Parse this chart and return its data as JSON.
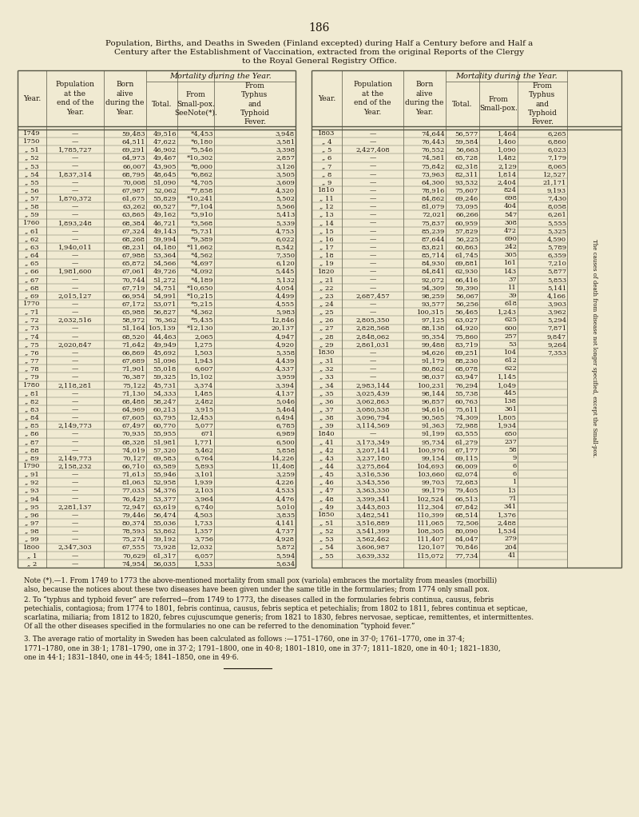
{
  "page_number": "186",
  "title_line1": "Population, Births, and Deaths in Sweden (Finland excepted) during Half a Century before and Half a",
  "title_line2": "Century after the Establishment of Vaccination, extracted from the original Reports of the Clergy",
  "title_line3": "to the Royal General Registry Office.",
  "bg_color": "#f0ead2",
  "text_color": "#1a1208",
  "data_left": [
    [
      "1749",
      "—",
      "59,483",
      "49,516",
      "*4,453",
      "3,948"
    ],
    [
      "1750",
      "—",
      "64,511",
      "47,622",
      "*6,180",
      "3,581"
    ],
    [
      "„ 51",
      "1,785,727",
      "69,291",
      "46,902",
      "*5,546",
      "3,398"
    ],
    [
      "„ 52",
      "—",
      "64,973",
      "49,467",
      "*10,302",
      "2,857"
    ],
    [
      "„ 53",
      "—",
      "66,007",
      "43,905",
      "*8,000",
      "3,126"
    ],
    [
      "„ 54",
      "1,837,314",
      "68,795",
      "48,645",
      "*6,862",
      "3,505"
    ],
    [
      "„ 55",
      "—",
      "70,008",
      "51,090",
      "*4,705",
      "3,609"
    ],
    [
      "„ 56",
      "—",
      "67,987",
      "52,062",
      "*7,858",
      "4,320"
    ],
    [
      "„ 57",
      "1,870,372",
      "61,675",
      "55,829",
      "*10,241",
      "5,502"
    ],
    [
      "„ 58",
      "—",
      "63,262",
      "60,527",
      "*7,104",
      "5,566"
    ],
    [
      "„ 59",
      "—",
      "63,865",
      "49,162",
      "*3,910",
      "5,413"
    ],
    [
      "1760",
      "1,893,248",
      "68,384",
      "46,721",
      "*3,568",
      "5,339"
    ],
    [
      "„ 61",
      "—",
      "67,324",
      "49,143",
      "*5,731",
      "4,753"
    ],
    [
      "„ 62",
      "—",
      "68,268",
      "59,994",
      "*9,389",
      "6,022"
    ],
    [
      "„ 63",
      "1,940,011",
      "68,231",
      "64,180",
      "*11,662",
      "8,342"
    ],
    [
      "„ 64",
      "—",
      "67,988",
      "53,364",
      "*4,562",
      "7,350"
    ],
    [
      "„ 65",
      "—",
      "65,872",
      "54,566",
      "*4,697",
      "6,120"
    ],
    [
      "„ 66",
      "1,981,600",
      "67,061",
      "49,726",
      "*4,092",
      "5,445"
    ],
    [
      "„ 67",
      "—",
      "70,744",
      "51,272",
      "*4,189",
      "5,132"
    ],
    [
      "„ 68",
      "—",
      "67,719",
      "54,751",
      "*10,650",
      "4,054"
    ],
    [
      "„ 69",
      "2,015,127",
      "66,954",
      "54,991",
      "*10,215",
      "4,499"
    ],
    [
      "1770",
      "—",
      "67,172",
      "53,071",
      "*5,215",
      "4,555"
    ],
    [
      "„ 71",
      "—",
      "65,988",
      "56,827",
      "*4,362",
      "5,983"
    ],
    [
      "„ 72",
      "2,032,516",
      "58,972",
      "76,362",
      "*5,435",
      "12,846"
    ],
    [
      "„ 73",
      "—",
      "51,164",
      "105,139",
      "*12,130",
      "20,137"
    ],
    [
      "„ 74",
      "—",
      "68,520",
      "44,463",
      "2,065",
      "4,947"
    ],
    [
      "„ 75",
      "2,020,847",
      "71,642",
      "49,949",
      "1,275",
      "4,920"
    ],
    [
      "„ 76",
      "—",
      "66,869",
      "45,692",
      "1,503",
      "5,358"
    ],
    [
      "„ 77",
      "—",
      "67,689",
      "51,096",
      "1,943",
      "4,439"
    ],
    [
      "„ 78",
      "—",
      "71,901",
      "55,018",
      "6,607",
      "4,337"
    ],
    [
      "„ 79",
      "—",
      "76,387",
      "59,325",
      "15,102",
      "3,959"
    ],
    [
      "1780",
      "2,118,281",
      "75,122",
      "45,731",
      "3,374",
      "3,394"
    ],
    [
      "„ 81",
      "—",
      "71,130",
      "54,333",
      "1,485",
      "4,137"
    ],
    [
      "„ 82",
      "—",
      "68,488",
      "58,247",
      "2,482",
      "5,046"
    ],
    [
      "„ 83",
      "—",
      "64,969",
      "60,213",
      "3,915",
      "5,464"
    ],
    [
      "„ 84",
      "—",
      "67,605",
      "63,795",
      "12,453",
      "6,494"
    ],
    [
      "„ 85",
      "2,149,773",
      "67,497",
      "60,770",
      "5,077",
      "6,785"
    ],
    [
      "„ 86",
      "—",
      "70,935",
      "55,955",
      "671",
      "6,989"
    ],
    [
      "„ 87",
      "—",
      "68,328",
      "51,981",
      "1,771",
      "6,500"
    ],
    [
      "„ 88",
      "—",
      "74,019",
      "57,320",
      "5,462",
      "5,858"
    ],
    [
      "„ 89",
      "2,149,773",
      "70,127",
      "69,583",
      "6,764",
      "14,226"
    ],
    [
      "1790",
      "2,158,232",
      "66,710",
      "63,589",
      "5,893",
      "11,408"
    ],
    [
      "„ 91",
      "—",
      "71,613",
      "55,946",
      "3,101",
      "3,259"
    ],
    [
      "„ 92",
      "—",
      "81,063",
      "52,958",
      "1,939",
      "4,226"
    ],
    [
      "„ 93",
      "—",
      "77,033",
      "54,376",
      "2,103",
      "4,533"
    ],
    [
      "„ 94",
      "—",
      "76,429",
      "53,377",
      "3,964",
      "4,476"
    ],
    [
      "„ 95",
      "2,281,137",
      "72,947",
      "63,619",
      "6,740",
      "5,010"
    ],
    [
      "„ 96",
      "—",
      "79,446",
      "56,474",
      "4,503",
      "3,835"
    ],
    [
      "„ 97",
      "—",
      "80,374",
      "55,036",
      "1,733",
      "4,141"
    ],
    [
      "„ 98",
      "—",
      "78,593",
      "53,862",
      "1,357",
      "4,737"
    ],
    [
      "„ 99",
      "—",
      "75,274",
      "59,192",
      "3,756",
      "4,928"
    ],
    [
      "1800",
      "2,347,303",
      "67,555",
      "73,928",
      "12,032",
      "5,872"
    ],
    [
      "„ 1",
      "—",
      "70,629",
      "61,317",
      "6,057",
      "5,594"
    ],
    [
      "„ 2",
      "—",
      "74,954",
      "56,035",
      "1,533",
      "5,634"
    ]
  ],
  "data_right": [
    [
      "1803",
      "—",
      "74,644",
      "56,577",
      "1,464",
      "6,265"
    ],
    [
      "„ 4",
      "—",
      "76,443",
      "59,584",
      "1,460",
      "6,860"
    ],
    [
      "„ 5",
      "2,427,408",
      "76,552",
      "56,663",
      "1,090",
      "6,023"
    ],
    [
      "„ 6",
      "—",
      "74,581",
      "65,728",
      "1,482",
      "7,179"
    ],
    [
      "„ 7",
      "—",
      "75,842",
      "62,318",
      "2,129",
      "8,065"
    ],
    [
      "„ 8",
      "—",
      "73,963",
      "82,311",
      "1,814",
      "12,527"
    ],
    [
      "„ 9",
      "—",
      "64,300",
      "93,532",
      "2,404",
      "21,171"
    ],
    [
      "1810",
      "—",
      "78,916",
      "75,607",
      "824",
      "9,193"
    ],
    [
      "„ 11",
      "—",
      "84,862",
      "69,246",
      "698",
      "7,430"
    ],
    [
      "„ 12",
      "—",
      "81,079",
      "73,095",
      "404",
      "8,058"
    ],
    [
      "„ 13",
      "—",
      "72,021",
      "66,266",
      "547",
      "6,261"
    ],
    [
      "„ 14",
      "—",
      "75,837",
      "60,959",
      "308",
      "5,555"
    ],
    [
      "„ 15",
      "—",
      "85,239",
      "57,829",
      "472",
      "5,325"
    ],
    [
      "„ 16",
      "—",
      "87,644",
      "56,225",
      "690",
      "4,590"
    ],
    [
      "„ 17",
      "—",
      "83,821",
      "60,863",
      "242",
      "5,789"
    ],
    [
      "„ 18",
      "—",
      "85,714",
      "61,745",
      "305",
      "6,359"
    ],
    [
      "„ 19",
      "—",
      "84,930",
      "69,881",
      "161",
      "7,210"
    ],
    [
      "1820",
      "—",
      "84,841",
      "62,930",
      "143",
      "5,877"
    ],
    [
      "„ 21",
      "—",
      "92,072",
      "66,416",
      "37",
      "5,853"
    ],
    [
      "„ 22",
      "—",
      "94,309",
      "59,390",
      "11",
      "5,141"
    ],
    [
      "„ 23",
      "2,687,457",
      "98,259",
      "56,067",
      "39",
      "4,166"
    ],
    [
      "„ 24",
      "—",
      "93,577",
      "56,256",
      "618",
      "3,903"
    ],
    [
      "„ 25",
      "—",
      "100,315",
      "56,465",
      "1,243",
      "3,962"
    ],
    [
      "„ 26",
      "2,805,350",
      "97,125",
      "63,027",
      "625",
      "5,294"
    ],
    [
      "„ 27",
      "2,828,568",
      "88,138",
      "64,920",
      "600",
      "7,871"
    ],
    [
      "„ 28",
      "2,848,062",
      "95,354",
      "75,860",
      "257",
      "9,847"
    ],
    [
      "„ 29",
      "2,861,031",
      "99,488",
      "83,719",
      "53",
      "9,264"
    ],
    [
      "1830",
      "—",
      "94,626",
      "69,251",
      "104",
      "7,353"
    ],
    [
      "„ 31",
      "—",
      "91,179",
      "88,230",
      "612",
      ""
    ],
    [
      "„ 32",
      "—",
      "80,862",
      "68,078",
      "622",
      ""
    ],
    [
      "„ 33",
      "—",
      "98,037",
      "63,947",
      "1,145",
      ""
    ],
    [
      "„ 34",
      "2,983,144",
      "100,231",
      "76,294",
      "1,049",
      ""
    ],
    [
      "„ 35",
      "3,025,439",
      "98,144",
      "55,738",
      "445",
      ""
    ],
    [
      "„ 36",
      "3,062,863",
      "96,857",
      "60,763",
      "138",
      ""
    ],
    [
      "„ 37",
      "3,080,538",
      "94,616",
      "75,611",
      "361",
      ""
    ],
    [
      "„ 38",
      "3,096,794",
      "90,565",
      "74,309",
      "1,805",
      ""
    ],
    [
      "„ 39",
      "3,114,569",
      "91,363",
      "72,988",
      "1,934",
      ""
    ],
    [
      "1840",
      "—",
      "91,199",
      "63,555",
      "650",
      ""
    ],
    [
      "„ 41",
      "3,173,349",
      "95,734",
      "61,279",
      "237",
      ""
    ],
    [
      "„ 42",
      "3,207,141",
      "100,976",
      "67,177",
      "58",
      ""
    ],
    [
      "„ 43",
      "3,237,180",
      "99,154",
      "69,115",
      "9",
      ""
    ],
    [
      "„ 44",
      "3,275,864",
      "104,693",
      "66,009",
      "6",
      ""
    ],
    [
      "„ 45",
      "3,316,536",
      "103,660",
      "62,074",
      "6",
      ""
    ],
    [
      "„ 46",
      "3,343,556",
      "99,703",
      "72,683",
      "1",
      ""
    ],
    [
      "„ 47",
      "3,363,330",
      "99,179",
      "79,405",
      "13",
      ""
    ],
    [
      "„ 48",
      "3,399,341",
      "102,524",
      "66,513",
      "71",
      ""
    ],
    [
      "„ 49",
      "3,443,803",
      "112,304",
      "67,842",
      "341",
      ""
    ],
    [
      "1850",
      "3,482,541",
      "110,399",
      "68,514",
      "1,376",
      ""
    ],
    [
      "„ 51",
      "3,516,889",
      "111,065",
      "72,506",
      "2,488",
      ""
    ],
    [
      "„ 52",
      "3,541,399",
      "108,305",
      "80,090",
      "1,534",
      ""
    ],
    [
      "„ 53",
      "3,562,462",
      "111,407",
      "84,047",
      "279",
      ""
    ],
    [
      "„ 54",
      "3,606,987",
      "120,107",
      "70,846",
      "204",
      ""
    ],
    [
      "„ 55",
      "3,639,332",
      "115,072",
      "77,734",
      "41",
      ""
    ]
  ],
  "footnote_para1": "Note (*).—1. From 1749 to 1773 the above-mentioned mortality from small pox (variola) embraces the mortality from measles (morbilli) also, because the notices about these two diseases have been given under the same title in the formularies; from 1774 only small pox.",
  "footnote_para2a": "2. To “typhus and typhoid fever” are referred—from 1749 to 1773, the diseases called in the formularies ",
  "footnote_para2b": "febris continua, causus, febris petechialis, contagiosa",
  "footnote_para2c": "; from 1774 to 1801, ",
  "footnote_para2d": "febris continua, causus, febris septica et petechialis",
  "footnote_para2e": "; from 1802 to 1811, ",
  "footnote_para2f": "febres continuae et septicae, scarlatina, miliaria",
  "footnote_para2g": "; from 1812 to 1820, ",
  "footnote_para2h": "febres cujuscumque generis",
  "footnote_para2i": "; from 1821 to 1830, ",
  "footnote_para2j": "febres nervosae, septicae, remittentes, et intermittentes.",
  "footnote_para2k": " Of all the other diseases specified in the formularies ",
  "footnote_para2l": "no one",
  "footnote_para2m": " can be referred to the denomination “typhoid fever.”",
  "footnote_para3": "3. The average ratio of mortality in Sweden has been calculated as follows :—1751–1760, one in 37·0; 1761–1770, one in 37·4; 1771–1780, one in 38·1; 1781–1790, one in 37·2; 1791–1800, one in 40·8; 1801–1810, one in 37·7; 1811–1820, one in 40·1; 1821–1830, one in 44·1; 1831–1840, one in 44·5; 1841–1850, one in 49·6.",
  "side_note": "The causes of death from disease not longer specified, except the Small-pox."
}
